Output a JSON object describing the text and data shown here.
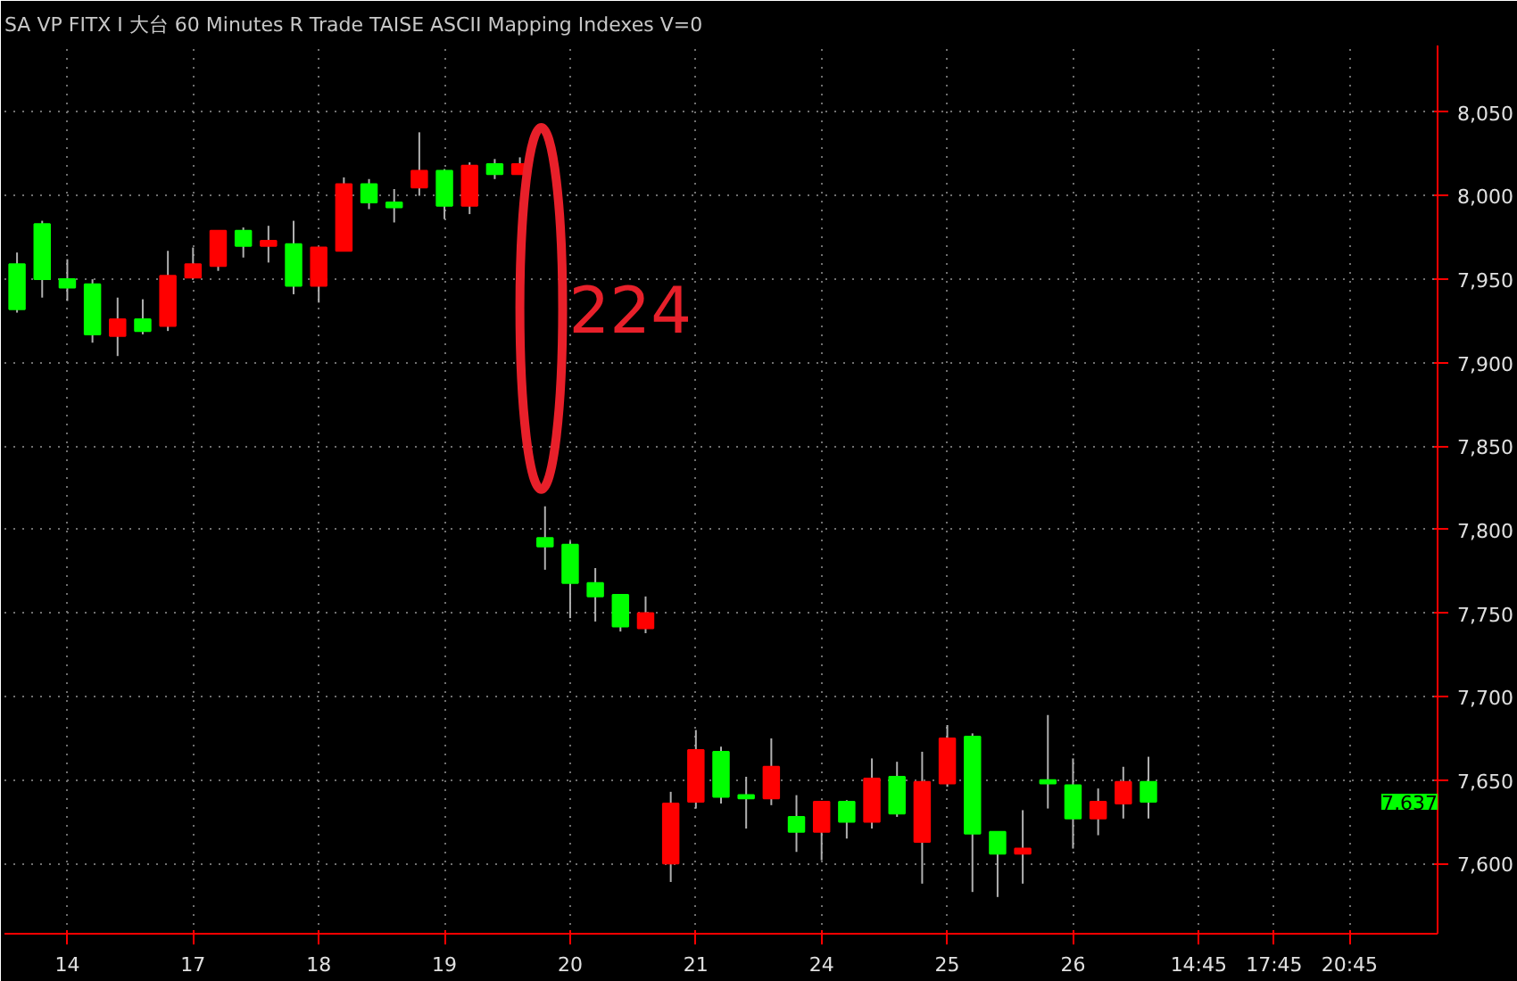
{
  "chart_data": {
    "type": "candlestick",
    "title": "SA VP FITX I 大台 60 Minutes R Trade TAISE ASCII Mapping Indexes V=0",
    "categories": [
      null,
      null,
      "14",
      null,
      null,
      null,
      null,
      "17",
      null,
      null,
      null,
      null,
      "18",
      null,
      null,
      null,
      null,
      "19",
      null,
      null,
      null,
      null,
      "20",
      null,
      null,
      null,
      null,
      "21",
      null,
      null,
      null,
      null,
      "24",
      null,
      null,
      null,
      null,
      "25",
      null,
      null,
      null,
      null,
      "26",
      null,
      null,
      null,
      null,
      "14:45",
      null,
      null,
      "17:45",
      null,
      null,
      "20:45",
      null,
      null,
      null
    ],
    "ohlc": [
      [
        7959,
        7966,
        7930,
        7932
      ],
      [
        7983,
        7985,
        7939,
        7950
      ],
      [
        7950,
        7962,
        7937,
        7945
      ],
      [
        7947,
        7950,
        7912,
        7917
      ],
      [
        7916,
        7939,
        7904,
        7926
      ],
      [
        7926,
        7938,
        7917,
        7919
      ],
      [
        7922,
        7967,
        7919,
        7952
      ],
      [
        7951,
        7969,
        7950,
        7959
      ],
      [
        7958,
        7979,
        7955,
        7979
      ],
      [
        7979,
        7981,
        7963,
        7970
      ],
      [
        7970,
        7982,
        7960,
        7973
      ],
      [
        7971,
        7985,
        7941,
        7946
      ],
      [
        7946,
        7969,
        7936,
        7969
      ],
      [
        7967,
        8011,
        7967,
        8007
      ],
      [
        8007,
        8010,
        7992,
        7996
      ],
      [
        7996,
        8004,
        7984,
        7993
      ],
      [
        8005,
        8038,
        8000,
        8015
      ],
      [
        8015,
        8016,
        7986,
        7994
      ],
      [
        7994,
        8020,
        7989,
        8018
      ],
      [
        8019,
        8022,
        8010,
        8013
      ],
      [
        8013,
        8023,
        8013,
        8019
      ],
      [
        7795,
        7814,
        7776,
        7790
      ],
      [
        7791,
        7793,
        7747,
        7768
      ],
      [
        7768,
        7777,
        7745,
        7760
      ],
      [
        7761,
        7761,
        7739,
        7742
      ],
      [
        7741,
        7760,
        7738,
        7750
      ],
      [
        7600,
        7643,
        7589,
        7636
      ],
      [
        7637,
        7680,
        7633,
        7668
      ],
      [
        7667,
        7670,
        7636,
        7640
      ],
      [
        7641,
        7652,
        7621,
        7639
      ],
      [
        7639,
        7675,
        7635,
        7658
      ],
      [
        7628,
        7641,
        7607,
        7619
      ],
      [
        7619,
        7637,
        7602,
        7637
      ],
      [
        7637,
        7638,
        7615,
        7625
      ],
      [
        7625,
        7663,
        7621,
        7651
      ],
      [
        7652,
        7661,
        7628,
        7630
      ],
      [
        7613,
        7667,
        7588,
        7649
      ],
      [
        7648,
        7683,
        7646,
        7675
      ],
      [
        7676,
        7678,
        7583,
        7618
      ],
      [
        7619,
        7619,
        7580,
        7606
      ],
      [
        7606,
        7632,
        7588,
        7609
      ],
      [
        7650,
        7689,
        7633,
        7648
      ],
      [
        7647,
        7663,
        7609,
        7627
      ],
      [
        7627,
        7645,
        7617,
        7637
      ],
      [
        7636,
        7658,
        7627,
        7649
      ],
      [
        7649,
        7664,
        7627,
        7637
      ],
      null,
      null,
      null,
      null,
      null,
      null,
      null,
      null,
      null,
      null,
      null
    ],
    "colors": [
      "#00ff00",
      "#00ff00",
      "#00ff00",
      "#00ff00",
      "#ff0000",
      "#00ff00",
      "#ff0000",
      "#ff0000",
      "#ff0000",
      "#00ff00",
      "#ff0000",
      "#00ff00",
      "#ff0000",
      "#ff0000",
      "#00ff00",
      "#00ff00",
      "#ff0000",
      "#00ff00",
      "#ff0000",
      "#00ff00",
      "#ff0000",
      "#00ff00",
      "#00ff00",
      "#00ff00",
      "#00ff00",
      "#ff0000",
      "#ff0000",
      "#ff0000",
      "#00ff00",
      "#00ff00",
      "#ff0000",
      "#00ff00",
      "#ff0000",
      "#00ff00",
      "#ff0000",
      "#00ff00",
      "#ff0000",
      "#ff0000",
      "#00ff00",
      "#00ff00",
      "#ff0000",
      "#00ff00",
      "#00ff00",
      "#ff0000",
      "#ff0000",
      "#00ff00",
      null,
      null,
      null,
      null,
      null,
      null,
      null,
      null,
      null,
      null,
      null
    ],
    "ylim": [
      7558,
      8090
    ],
    "yticks": [
      {
        "value": 7600,
        "label": "7,600"
      },
      {
        "value": 7650,
        "label": "7,650"
      },
      {
        "value": 7700,
        "label": "7,700"
      },
      {
        "value": 7750,
        "label": "7,750"
      },
      {
        "value": 7800,
        "label": "7,800"
      },
      {
        "value": 7850,
        "label": "7,850"
      },
      {
        "value": 7900,
        "label": "7,900"
      },
      {
        "value": 7950,
        "label": "7,950"
      },
      {
        "value": 8000,
        "label": "8,000"
      },
      {
        "value": 8050,
        "label": "8,050"
      }
    ],
    "grid": true,
    "annotations": [
      "224",
      "7,637"
    ]
  }
}
